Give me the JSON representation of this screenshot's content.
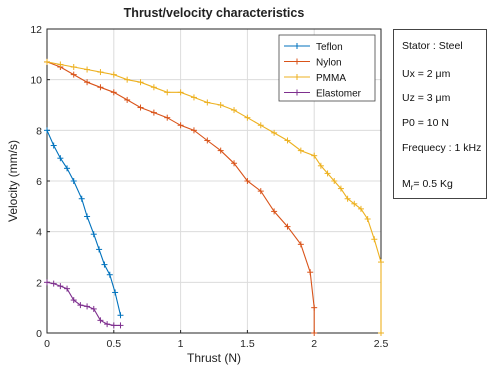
{
  "chart_data": {
    "type": "line",
    "title": "Thrust/velocity characteristics",
    "xlabel": "Thrust (N)",
    "ylabel": "Velocity (mm/s)",
    "xlim": [
      0,
      2.5
    ],
    "ylim": [
      0,
      12
    ],
    "x_ticks": [
      "0",
      "0.5",
      "1",
      "1.5",
      "2",
      "2.5"
    ],
    "y_ticks": [
      "0",
      "2",
      "4",
      "6",
      "8",
      "10",
      "12"
    ],
    "grid": true,
    "legend": "top-right",
    "series": [
      {
        "name": "Teflon",
        "color": "#0072BD",
        "marker": "+",
        "x": [
          0.0,
          0.05,
          0.1,
          0.15,
          0.2,
          0.26,
          0.3,
          0.35,
          0.39,
          0.43,
          0.47,
          0.51,
          0.55
        ],
        "y": [
          8.0,
          7.4,
          6.9,
          6.5,
          6.0,
          5.3,
          4.6,
          3.9,
          3.3,
          2.7,
          2.3,
          1.6,
          0.7
        ]
      },
      {
        "name": "Nylon",
        "color": "#D95319",
        "marker": "+",
        "x": [
          0.0,
          0.1,
          0.2,
          0.3,
          0.4,
          0.5,
          0.6,
          0.7,
          0.8,
          0.9,
          1.0,
          1.1,
          1.2,
          1.3,
          1.4,
          1.5,
          1.6,
          1.7,
          1.8,
          1.9,
          1.97,
          2.0,
          2.0
        ],
        "y": [
          10.7,
          10.5,
          10.2,
          9.9,
          9.7,
          9.5,
          9.2,
          8.9,
          8.7,
          8.5,
          8.2,
          8.0,
          7.6,
          7.2,
          6.7,
          6.0,
          5.6,
          4.8,
          4.2,
          3.5,
          2.4,
          1.0,
          0.0
        ]
      },
      {
        "name": "PMMA",
        "color": "#EDB120",
        "marker": "+",
        "x": [
          0.0,
          0.1,
          0.2,
          0.3,
          0.4,
          0.5,
          0.6,
          0.7,
          0.8,
          0.9,
          1.0,
          1.1,
          1.2,
          1.3,
          1.4,
          1.5,
          1.6,
          1.7,
          1.8,
          1.9,
          2.0,
          2.05,
          2.1,
          2.15,
          2.2,
          2.25,
          2.3,
          2.35,
          2.4,
          2.45,
          2.5,
          2.5
        ],
        "y": [
          10.7,
          10.6,
          10.5,
          10.4,
          10.3,
          10.2,
          10.0,
          9.9,
          9.7,
          9.5,
          9.5,
          9.3,
          9.1,
          9.0,
          8.8,
          8.5,
          8.2,
          7.9,
          7.6,
          7.2,
          7.0,
          6.6,
          6.3,
          6.0,
          5.7,
          5.3,
          5.1,
          4.9,
          4.5,
          3.7,
          2.8,
          0.0
        ]
      },
      {
        "name": "Elastomer",
        "color": "#7E2F8E",
        "marker": "+",
        "x": [
          0.0,
          0.05,
          0.1,
          0.15,
          0.2,
          0.25,
          0.3,
          0.35,
          0.4,
          0.45,
          0.5,
          0.55
        ],
        "y": [
          2.0,
          1.95,
          1.85,
          1.75,
          1.3,
          1.1,
          1.05,
          0.95,
          0.5,
          0.35,
          0.3,
          0.3
        ]
      }
    ]
  },
  "info_panel": {
    "stator": "Stator : Steel",
    "ux": "Ux = 2  μm",
    "uz": "Uz = 3  μm",
    "p0": "P0 = 10 N",
    "frequency": "Frequecy : 1 kHz",
    "mass_prefix": "M",
    "mass_sub": "r",
    "mass_value": "= 0.5 Kg"
  }
}
